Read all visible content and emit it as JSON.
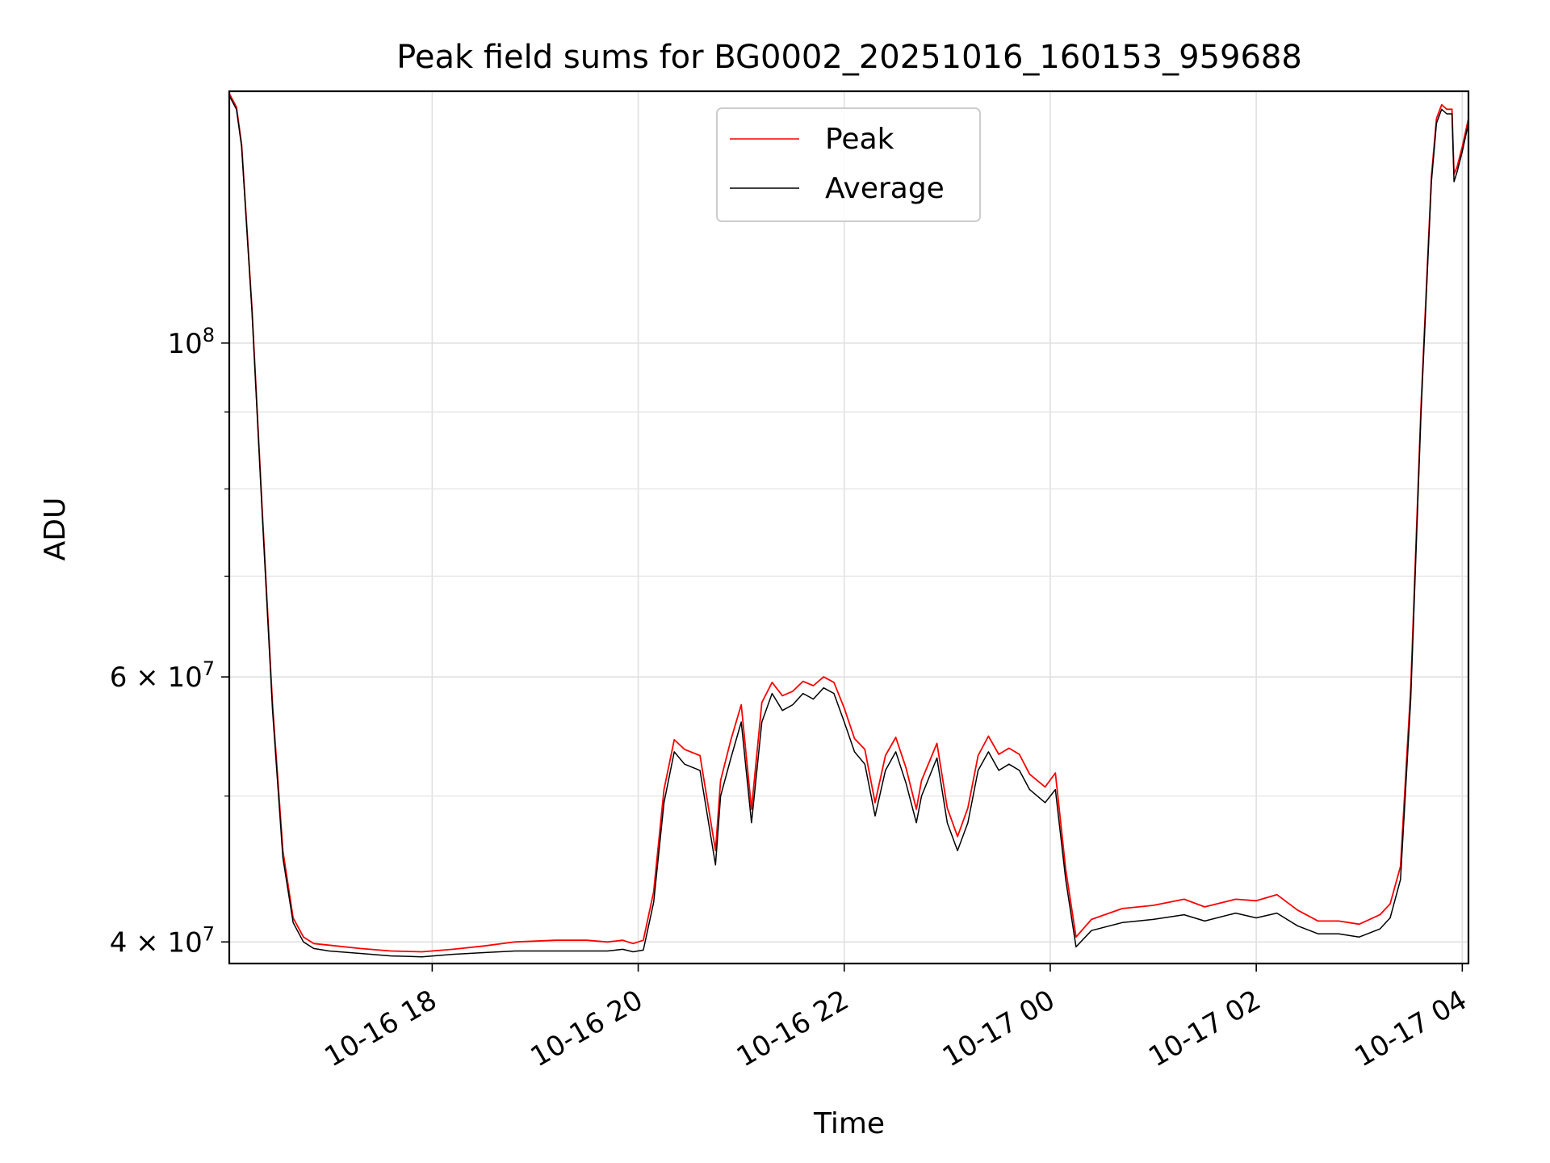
{
  "chart_data": {
    "type": "line",
    "title": "Peak field sums for BG0002_20251016_160153_959688",
    "xlabel": "Time",
    "ylabel": "ADU",
    "yscale": "log",
    "ylim": [
      38700000,
      147000000
    ],
    "xlim_hours": [
      16.03,
      28.06
    ],
    "x_unit": "hours since 2025-10-16 00:00",
    "grid": true,
    "legend_position": "upper center",
    "x_ticks": [
      {
        "value": 18,
        "label": "10-16 18"
      },
      {
        "value": 20,
        "label": "10-16 20"
      },
      {
        "value": 22,
        "label": "10-16 22"
      },
      {
        "value": 24,
        "label": "10-17 00"
      },
      {
        "value": 26,
        "label": "10-17 02"
      },
      {
        "value": 28,
        "label": "10-17 04"
      }
    ],
    "y_major_ticks": [
      {
        "value": 40000000,
        "label": "4 × 10",
        "exp": "7"
      },
      {
        "value": 60000000,
        "label": "6 × 10",
        "exp": "7"
      },
      {
        "value": 100000000,
        "label": "10",
        "exp": "8"
      }
    ],
    "y_minor_ticks": [
      50000000,
      70000000,
      80000000,
      90000000
    ],
    "series": [
      {
        "name": "Average",
        "color": "#000000",
        "x": [
          16.03,
          16.1,
          16.15,
          16.25,
          16.35,
          16.45,
          16.55,
          16.65,
          16.75,
          16.85,
          17.0,
          17.3,
          17.6,
          17.9,
          18.2,
          18.5,
          18.8,
          19.2,
          19.5,
          19.7,
          19.85,
          19.95,
          20.05,
          20.15,
          20.25,
          20.35,
          20.45,
          20.6,
          20.75,
          20.8,
          20.9,
          21.0,
          21.1,
          21.2,
          21.3,
          21.4,
          21.5,
          21.6,
          21.7,
          21.8,
          21.9,
          22.0,
          22.1,
          22.2,
          22.3,
          22.4,
          22.5,
          22.6,
          22.7,
          22.75,
          22.9,
          23.0,
          23.1,
          23.2,
          23.3,
          23.4,
          23.5,
          23.6,
          23.7,
          23.8,
          23.95,
          24.05,
          24.15,
          24.25,
          24.4,
          24.7,
          25.0,
          25.3,
          25.5,
          25.8,
          26.0,
          26.2,
          26.4,
          26.6,
          26.8,
          27.0,
          27.2,
          27.3,
          27.4,
          27.5,
          27.6,
          27.7,
          27.75,
          27.8,
          27.85,
          27.9,
          27.92,
          27.95,
          28.0,
          28.06
        ],
        "values": [
          146000000,
          143000000,
          135000000,
          105000000,
          77000000,
          57000000,
          45500000,
          41200000,
          40000000,
          39600000,
          39450000,
          39300000,
          39150000,
          39100000,
          39250000,
          39350000,
          39450000,
          39450000,
          39450000,
          39450000,
          39550000,
          39400000,
          39500000,
          42500000,
          49500000,
          53500000,
          52500000,
          52000000,
          45000000,
          50000000,
          53000000,
          56000000,
          48000000,
          56000000,
          58500000,
          57000000,
          57500000,
          58500000,
          58000000,
          59000000,
          58500000,
          56000000,
          53500000,
          52500000,
          48500000,
          52000000,
          53500000,
          51000000,
          48000000,
          50000000,
          53000000,
          48000000,
          46000000,
          48000000,
          52000000,
          53500000,
          52000000,
          52500000,
          52000000,
          50500000,
          49500000,
          50500000,
          44000000,
          39700000,
          40700000,
          41200000,
          41400000,
          41700000,
          41300000,
          41800000,
          41500000,
          41800000,
          41000000,
          40500000,
          40500000,
          40300000,
          40800000,
          41500000,
          44000000,
          58000000,
          90000000,
          128000000,
          140000000,
          143000000,
          142000000,
          142000000,
          128000000,
          130000000,
          134000000,
          140000000
        ]
      },
      {
        "name": "Peak",
        "color": "#ff0000",
        "x": [
          16.03,
          16.1,
          16.15,
          16.25,
          16.35,
          16.45,
          16.55,
          16.65,
          16.75,
          16.85,
          17.0,
          17.3,
          17.6,
          17.9,
          18.2,
          18.5,
          18.8,
          19.2,
          19.5,
          19.7,
          19.85,
          19.95,
          20.05,
          20.15,
          20.25,
          20.35,
          20.45,
          20.6,
          20.75,
          20.8,
          20.9,
          21.0,
          21.1,
          21.2,
          21.3,
          21.4,
          21.5,
          21.6,
          21.7,
          21.8,
          21.9,
          22.0,
          22.1,
          22.2,
          22.3,
          22.4,
          22.5,
          22.6,
          22.7,
          22.75,
          22.9,
          23.0,
          23.1,
          23.2,
          23.3,
          23.4,
          23.5,
          23.6,
          23.7,
          23.8,
          23.95,
          24.05,
          24.15,
          24.25,
          24.4,
          24.7,
          25.0,
          25.3,
          25.5,
          25.8,
          26.0,
          26.2,
          26.4,
          26.6,
          26.8,
          27.0,
          27.2,
          27.3,
          27.4,
          27.5,
          27.6,
          27.7,
          27.75,
          27.8,
          27.85,
          27.9,
          27.92,
          27.95,
          28.0,
          28.06
        ],
        "values": [
          146500000,
          143500000,
          135500000,
          105500000,
          77500000,
          57500000,
          46000000,
          41500000,
          40300000,
          39900000,
          39800000,
          39600000,
          39450000,
          39400000,
          39550000,
          39750000,
          40000000,
          40100000,
          40100000,
          40000000,
          40100000,
          39900000,
          40100000,
          43200000,
          50500000,
          54500000,
          53700000,
          53200000,
          46000000,
          51200000,
          54500000,
          57500000,
          49000000,
          57700000,
          59500000,
          58300000,
          58700000,
          59600000,
          59200000,
          60000000,
          59500000,
          57200000,
          54600000,
          53700000,
          49500000,
          53200000,
          54700000,
          52200000,
          49000000,
          51200000,
          54200000,
          49100000,
          47000000,
          49100000,
          53200000,
          54800000,
          53300000,
          53800000,
          53300000,
          51700000,
          50700000,
          51800000,
          44700000,
          40300000,
          41400000,
          42100000,
          42300000,
          42700000,
          42200000,
          42700000,
          42600000,
          43000000,
          42000000,
          41300000,
          41300000,
          41100000,
          41700000,
          42400000,
          44900000,
          59000000,
          91000000,
          129000000,
          141000000,
          144000000,
          143000000,
          143000000,
          129500000,
          131000000,
          135000000,
          141000000
        ]
      }
    ]
  }
}
